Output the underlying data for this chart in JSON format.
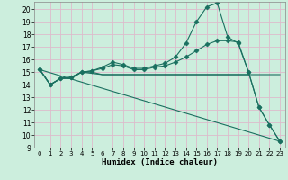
{
  "xlabel": "Humidex (Indice chaleur)",
  "background_color": "#cceedd",
  "grid_color": "#ddbbcc",
  "line_color": "#1a7060",
  "xlim": [
    -0.5,
    23.5
  ],
  "ylim": [
    9,
    20.6
  ],
  "yticks": [
    9,
    10,
    11,
    12,
    13,
    14,
    15,
    16,
    17,
    18,
    19,
    20
  ],
  "xticks": [
    0,
    1,
    2,
    3,
    4,
    5,
    6,
    7,
    8,
    9,
    10,
    11,
    12,
    13,
    14,
    15,
    16,
    17,
    18,
    19,
    20,
    21,
    22,
    23
  ],
  "lines": [
    {
      "x": [
        0,
        1,
        2,
        3,
        4,
        5,
        6,
        7,
        8,
        9,
        10,
        11,
        12,
        13,
        14,
        15,
        16,
        17,
        18,
        19,
        20
      ],
      "y": [
        15.2,
        14.0,
        14.5,
        14.5,
        15.0,
        15.0,
        14.8,
        14.8,
        14.8,
        14.8,
        14.8,
        14.8,
        14.8,
        14.8,
        14.8,
        14.8,
        14.8,
        14.8,
        14.8,
        14.8,
        14.8
      ],
      "markers": false
    },
    {
      "x": [
        0,
        1,
        2,
        3,
        4,
        5,
        6,
        7,
        8,
        9,
        10,
        11,
        12,
        13,
        14,
        15,
        16,
        17,
        18,
        19,
        20,
        21,
        22,
        23
      ],
      "y": [
        15.2,
        14.0,
        14.5,
        14.6,
        15.0,
        15.1,
        15.3,
        15.6,
        15.5,
        15.2,
        15.2,
        15.4,
        15.5,
        15.8,
        16.2,
        16.7,
        17.2,
        17.5,
        17.5,
        17.4,
        15.0,
        12.2,
        10.8,
        9.5
      ],
      "markers": true
    },
    {
      "x": [
        0,
        1,
        2,
        3,
        4,
        5,
        6,
        7,
        8,
        9,
        10,
        11,
        12,
        13,
        14,
        15,
        16,
        17,
        18,
        19,
        20,
        21,
        22,
        23
      ],
      "y": [
        15.2,
        14.0,
        14.5,
        14.6,
        15.0,
        15.1,
        15.4,
        15.8,
        15.6,
        15.3,
        15.3,
        15.5,
        15.7,
        16.2,
        17.3,
        19.0,
        20.2,
        20.5,
        17.8,
        17.3,
        15.0,
        12.2,
        10.8,
        9.5
      ],
      "markers": true
    },
    {
      "x": [
        0,
        1,
        2,
        3,
        4,
        5,
        6,
        7,
        8,
        9,
        10,
        11,
        12,
        13,
        14,
        15,
        16,
        17,
        18,
        19,
        20,
        21,
        22,
        23
      ],
      "y": [
        15.2,
        14.0,
        14.5,
        14.5,
        15.0,
        14.9,
        14.8,
        14.8,
        14.8,
        14.8,
        14.8,
        14.8,
        14.8,
        14.8,
        14.8,
        14.8,
        14.8,
        14.8,
        14.8,
        14.8,
        14.8,
        14.8,
        14.8,
        14.8
      ],
      "markers": false
    },
    {
      "x": [
        0,
        23
      ],
      "y": [
        15.2,
        9.5
      ],
      "markers": false
    }
  ]
}
